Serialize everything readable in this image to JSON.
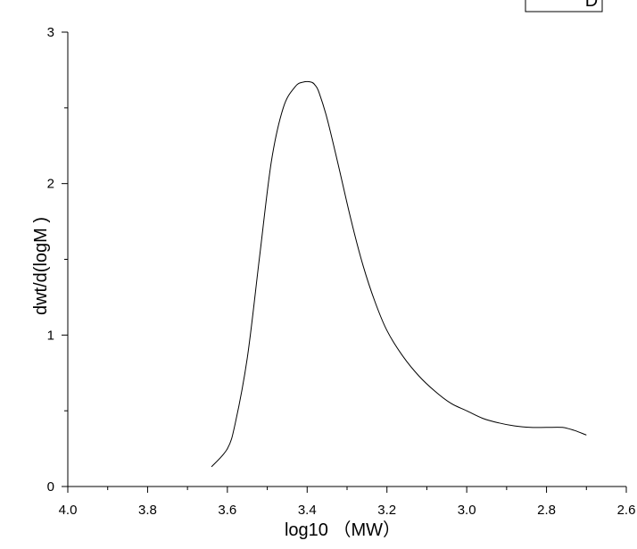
{
  "chart_data": {
    "type": "line",
    "title": "",
    "xlabel": "log10 （MW）",
    "ylabel": "dwt/d(logM )",
    "xlim": [
      4.0,
      2.6
    ],
    "x_reversed": true,
    "ylim": [
      0,
      3
    ],
    "x_major_ticks": [
      4.0,
      3.8,
      3.6,
      3.4,
      3.2,
      3.0,
      2.8,
      2.6
    ],
    "x_tick_labels": [
      "4.0",
      "3.8",
      "3.6",
      "3.4",
      "3.2",
      "3.0",
      "2.8",
      "2.6"
    ],
    "y_major_ticks": [
      0,
      1,
      2,
      3
    ],
    "y_tick_labels": [
      "0",
      "1",
      "2",
      "3"
    ],
    "grid": false,
    "legend": {
      "placement": "top-right",
      "entries": [
        "D"
      ]
    },
    "series": [
      {
        "name": "D",
        "color": "#000000",
        "x": [
          3.64,
          3.6,
          3.58,
          3.55,
          3.52,
          3.49,
          3.46,
          3.43,
          3.41,
          3.39,
          3.38,
          3.37,
          3.35,
          3.32,
          3.29,
          3.26,
          3.23,
          3.2,
          3.16,
          3.12,
          3.08,
          3.04,
          3.0,
          2.96,
          2.92,
          2.88,
          2.84,
          2.8,
          2.76,
          2.73,
          2.7
        ],
        "y": [
          0.13,
          0.25,
          0.42,
          0.85,
          1.5,
          2.14,
          2.5,
          2.64,
          2.67,
          2.67,
          2.65,
          2.6,
          2.43,
          2.1,
          1.76,
          1.46,
          1.22,
          1.03,
          0.86,
          0.73,
          0.63,
          0.55,
          0.5,
          0.45,
          0.42,
          0.4,
          0.39,
          0.39,
          0.39,
          0.37,
          0.34
        ]
      }
    ]
  }
}
